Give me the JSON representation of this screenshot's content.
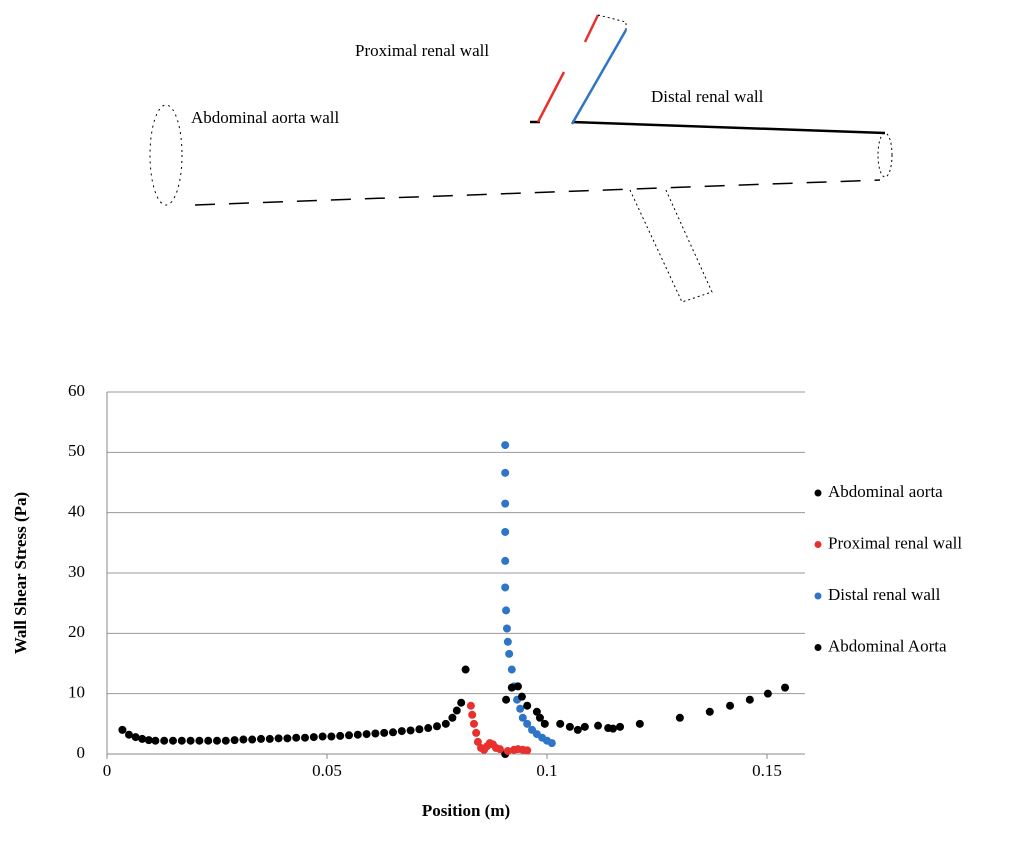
{
  "diagram": {
    "labels": [
      "Proximal renal wall",
      "Distal renal wall",
      "Abdominal aorta wall"
    ]
  },
  "chart_data": {
    "type": "scatter",
    "x_label": "Position (m)",
    "y_label": "Wall Shear Stress (Pa)",
    "xlim": [
      0,
      0.16
    ],
    "ylim": [
      0,
      60
    ],
    "xticks": [
      0,
      0.05,
      0.1,
      0.15
    ],
    "yticks": [
      0,
      10,
      20,
      30,
      40,
      50,
      60
    ],
    "grid": true,
    "legend": "right",
    "series": [
      {
        "name": "Abdominal aorta",
        "color": "#000000",
        "x": [
          0.0035,
          0.005,
          0.0065,
          0.008,
          0.0095,
          0.011,
          0.013,
          0.015,
          0.017,
          0.019,
          0.021,
          0.023,
          0.025,
          0.027,
          0.029,
          0.031,
          0.033,
          0.035,
          0.037,
          0.039,
          0.041,
          0.043,
          0.045,
          0.047,
          0.049,
          0.051,
          0.053,
          0.055,
          0.057,
          0.059,
          0.061,
          0.063,
          0.065,
          0.067,
          0.069,
          0.071,
          0.073,
          0.075,
          0.077,
          0.0785,
          0.0795,
          0.0805,
          0.0815,
          0.0905
        ],
        "values": [
          4.0,
          3.2,
          2.8,
          2.5,
          2.3,
          2.2,
          2.2,
          2.2,
          2.2,
          2.2,
          2.2,
          2.2,
          2.2,
          2.2,
          2.3,
          2.4,
          2.4,
          2.5,
          2.5,
          2.6,
          2.6,
          2.7,
          2.7,
          2.8,
          2.9,
          2.9,
          3.0,
          3.1,
          3.2,
          3.3,
          3.4,
          3.5,
          3.6,
          3.8,
          3.9,
          4.1,
          4.3,
          4.6,
          5.0,
          6.0,
          7.2,
          8.5,
          14.0,
          0
        ]
      },
      {
        "name": "Proximal renal wall",
        "color": "#e8312e",
        "x": [
          0.0827,
          0.083,
          0.0834,
          0.0839,
          0.0843,
          0.085,
          0.0857,
          0.0864,
          0.087,
          0.0877,
          0.0884,
          0.0893,
          0.0911,
          0.0925,
          0.0934,
          0.0945,
          0.0955
        ],
        "values": [
          8.0,
          6.5,
          5.0,
          3.5,
          2.0,
          1.0,
          0.7,
          1.3,
          1.8,
          1.6,
          1.0,
          0.8,
          0.5,
          0.7,
          0.8,
          0.7,
          0.6
        ]
      },
      {
        "name": "Distal renal wall",
        "color": "#2e75c8",
        "x": [
          0.0905,
          0.0905,
          0.0905,
          0.0905,
          0.0905,
          0.0905,
          0.0907,
          0.0909,
          0.0911,
          0.0914,
          0.092,
          0.0925,
          0.0932,
          0.0939,
          0.0945,
          0.0955,
          0.0966,
          0.0977,
          0.0989,
          0.1,
          0.1011
        ],
        "values": [
          51.2,
          46.6,
          41.5,
          36.8,
          32.0,
          27.6,
          23.8,
          20.8,
          18.6,
          16.6,
          14.0,
          11.2,
          9.0,
          7.5,
          6.0,
          5.0,
          4.0,
          3.3,
          2.7,
          2.2,
          1.8
        ]
      },
      {
        "name": "Abdominal Aorta",
        "color": "#000000",
        "x": [
          0.0907,
          0.092,
          0.0934,
          0.0943,
          0.0955,
          0.0977,
          0.0984,
          0.0995,
          0.103,
          0.1052,
          0.107,
          0.1086,
          0.1116,
          0.1139,
          0.115,
          0.1166,
          0.1211,
          0.1302,
          0.137,
          0.1416,
          0.1461,
          0.1502,
          0.1541
        ],
        "values": [
          9.0,
          11.0,
          11.2,
          9.5,
          8.0,
          7.0,
          6.0,
          5.0,
          5.0,
          4.5,
          4.0,
          4.5,
          4.7,
          4.3,
          4.2,
          4.5,
          5.0,
          6.0,
          7.0,
          8.0,
          9.0,
          10.0,
          11.0
        ]
      }
    ]
  }
}
